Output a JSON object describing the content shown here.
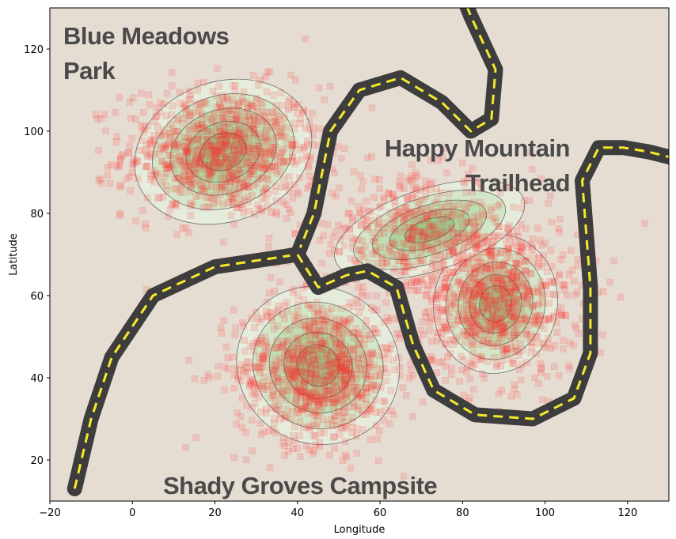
{
  "map": {
    "x_axis_label": "Longitude",
    "y_axis_label": "Latitude",
    "x_ticks": [
      "−20",
      "0",
      "20",
      "40",
      "60",
      "80",
      "100",
      "120"
    ],
    "y_ticks": [
      "20",
      "40",
      "60",
      "80",
      "100",
      "120"
    ],
    "xlim": [
      -20,
      130
    ],
    "ylim": [
      10,
      130
    ],
    "labels": {
      "blue_meadows_1": "Blue Meadows",
      "blue_meadows_2": "Park",
      "happy_mountain_1": "Happy Mountain",
      "happy_mountain_2": "Trailhead",
      "shady_groves": "Shady Groves Campsite"
    },
    "clusters": [
      {
        "cx": 22,
        "cy": 95,
        "sx": 12,
        "sy": 8,
        "n": 900
      },
      {
        "cx": 45,
        "cy": 42,
        "sx": 10,
        "sy": 9,
        "n": 900
      },
      {
        "cx": 88,
        "cy": 58,
        "sx": 10,
        "sy": 9,
        "n": 800
      },
      {
        "cx": 70,
        "cy": 75,
        "sx": 14,
        "sy": 7,
        "n": 500
      }
    ],
    "colors": {
      "background": "#e6ddd2",
      "road": "#3d3d3d",
      "road_stripe": "#f5ea2a",
      "contour_fill": "#2d9f2d",
      "marker": "#ff2b2b",
      "label_text": "#4a4a4a"
    }
  }
}
